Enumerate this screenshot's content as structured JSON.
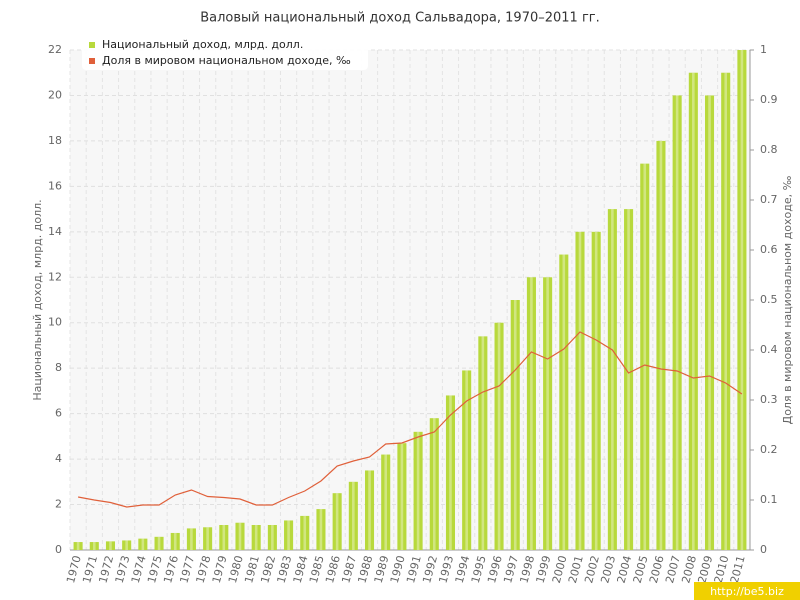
{
  "chart_data": {
    "type": "bar-line",
    "title": "Валовый национальный доход Сальвадора, 1970–2011 гг.",
    "y_label": "Национальный доход, млрд. долл.",
    "y2_label": "Доля в мировом национальном доходе, ‰",
    "watermark": "http://be5.biz",
    "categories": [
      "1970",
      "1971",
      "1972",
      "1973",
      "1974",
      "1975",
      "1976",
      "1977",
      "1978",
      "1979",
      "1980",
      "1981",
      "1982",
      "1983",
      "1984",
      "1985",
      "1986",
      "1987",
      "1988",
      "1989",
      "1990",
      "1991",
      "1992",
      "1993",
      "1994",
      "1995",
      "1996",
      "1997",
      "1998",
      "1999",
      "2000",
      "2001",
      "2002",
      "2003",
      "2004",
      "2005",
      "2006",
      "2007",
      "2008",
      "2009",
      "2010",
      "2011"
    ],
    "series": [
      {
        "name": "Национальный доход, млрд. долл.",
        "type": "bar",
        "color": "#b8d93c",
        "values": [
          0.35,
          0.35,
          0.38,
          0.42,
          0.5,
          0.58,
          0.75,
          0.95,
          1.0,
          1.1,
          1.2,
          1.1,
          1.1,
          1.3,
          1.5,
          1.8,
          2.5,
          3.0,
          3.5,
          4.2,
          4.7,
          5.2,
          5.8,
          6.8,
          7.9,
          9.4,
          10,
          11,
          12,
          12,
          13,
          14,
          14,
          15,
          15,
          17,
          18,
          20,
          21,
          20,
          21,
          22
        ]
      },
      {
        "name": "Доля в мировом национальном доходе, ‰",
        "type": "line",
        "axis": "y2",
        "color": "#e0603a",
        "values": [
          0.106,
          0.1,
          0.095,
          0.086,
          0.09,
          0.09,
          0.11,
          0.12,
          0.107,
          0.105,
          0.102,
          0.09,
          0.09,
          0.105,
          0.118,
          0.138,
          0.168,
          0.178,
          0.186,
          0.212,
          0.214,
          0.226,
          0.236,
          0.27,
          0.298,
          0.316,
          0.328,
          0.36,
          0.396,
          0.382,
          0.402,
          0.436,
          0.42,
          0.4,
          0.354,
          0.37,
          0.362,
          0.358,
          0.344,
          0.348,
          0.334,
          0.312
        ]
      }
    ],
    "ylim": [
      0,
      22
    ],
    "yticks": [
      0,
      2,
      4,
      6,
      8,
      10,
      12,
      14,
      16,
      18,
      20,
      22
    ],
    "y2lim": [
      0,
      1
    ],
    "y2ticks": [
      0,
      0.1,
      0.2,
      0.3,
      0.4,
      0.5,
      0.6,
      0.7,
      0.8,
      0.9,
      1
    ],
    "grid": true,
    "legend": "top-left"
  }
}
